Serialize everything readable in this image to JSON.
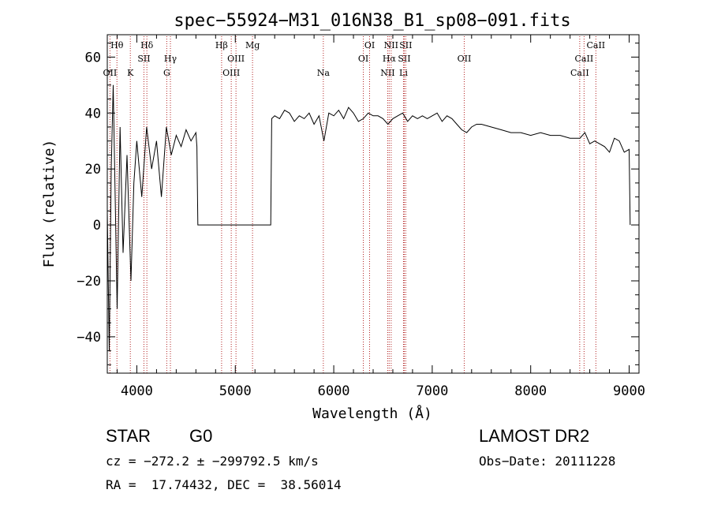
{
  "chart_data": {
    "type": "line",
    "title": "spec−55924−M31_016N38_B1_sp08−091.fits",
    "xlabel": "Wavelength (Å)",
    "ylabel": "Flux (relative)",
    "xlim": [
      3700,
      9100
    ],
    "ylim": [
      -53,
      68
    ],
    "x_ticks": [
      4000,
      5000,
      6000,
      7000,
      8000,
      9000
    ],
    "y_ticks": [
      -40,
      -20,
      0,
      20,
      40,
      60
    ],
    "grid": false,
    "series": [
      {
        "x": [
          3700,
          3720,
          3740,
          3760,
          3780,
          3800,
          3830,
          3860,
          3900,
          3940,
          3970,
          4000,
          4050,
          4100,
          4150,
          4200,
          4250,
          4300,
          4350,
          4400,
          4450,
          4500,
          4550,
          4600,
          4610,
          4620,
          5360,
          5370,
          5400,
          5450,
          5500,
          5550,
          5600,
          5650,
          5700,
          5750,
          5800,
          5850,
          5900,
          5950,
          6000,
          6050,
          6100,
          6150,
          6200,
          6250,
          6300,
          6350,
          6400,
          6450,
          6500,
          6550,
          6600,
          6650,
          6700,
          6750,
          6800,
          6850,
          6900,
          6950,
          7000,
          7050,
          7100,
          7150,
          7200,
          7250,
          7300,
          7350,
          7400,
          7450,
          7500,
          7600,
          7700,
          7800,
          7900,
          8000,
          8100,
          8200,
          8300,
          8400,
          8500,
          8550,
          8600,
          8650,
          8700,
          8750,
          8800,
          8850,
          8900,
          8950,
          9000,
          9010
        ],
        "y": [
          5,
          -45,
          20,
          50,
          10,
          -30,
          35,
          -10,
          25,
          -20,
          15,
          30,
          10,
          35,
          20,
          30,
          10,
          35,
          25,
          32,
          28,
          34,
          30,
          33,
          28,
          0,
          0,
          38,
          39,
          38,
          41,
          40,
          37,
          39,
          38,
          40,
          36,
          39,
          30,
          40,
          39,
          41,
          38,
          42,
          40,
          37,
          38,
          40,
          39,
          39,
          38,
          36,
          38,
          39,
          40,
          37,
          39,
          38,
          39,
          38,
          39,
          40,
          37,
          39,
          38,
          36,
          34,
          33,
          35,
          36,
          36,
          35,
          34,
          33,
          33,
          32,
          33,
          32,
          32,
          31,
          31,
          33,
          29,
          30,
          29,
          28,
          26,
          31,
          30,
          26,
          27,
          0
        ]
      }
    ],
    "lines": [
      {
        "name": "OII",
        "x": 3727,
        "row": 3
      },
      {
        "name": "Hθ",
        "x": 3798,
        "row": 1
      },
      {
        "name": "K",
        "x": 3934,
        "row": 3
      },
      {
        "name": "Hδ",
        "x": 4102,
        "row": 1
      },
      {
        "name": "SII",
        "x": 4072,
        "row": 2
      },
      {
        "name": "Hγ",
        "x": 4341,
        "row": 2
      },
      {
        "name": "G",
        "x": 4304,
        "row": 3
      },
      {
        "name": "Hβ",
        "x": 4861,
        "row": 1
      },
      {
        "name": "OIII",
        "x": 4959,
        "row": 3
      },
      {
        "name": "OIII",
        "x": 5007,
        "row": 2
      },
      {
        "name": "Mg",
        "x": 5175,
        "row": 1
      },
      {
        "name": "Na",
        "x": 5894,
        "row": 3
      },
      {
        "name": "OI",
        "x": 6300,
        "row": 2
      },
      {
        "name": "OI",
        "x": 6364,
        "row": 1
      },
      {
        "name": "NII",
        "x": 6548,
        "row": 3
      },
      {
        "name": "Hα",
        "x": 6563,
        "row": 2
      },
      {
        "name": "NII",
        "x": 6583,
        "row": 1
      },
      {
        "name": "Li",
        "x": 6708,
        "row": 3
      },
      {
        "name": "SII",
        "x": 6716,
        "row": 2
      },
      {
        "name": "SII",
        "x": 6731,
        "row": 1
      },
      {
        "name": "OII",
        "x": 7325,
        "row": 2
      },
      {
        "name": "CaII",
        "x": 8498,
        "row": 3
      },
      {
        "name": "CaII",
        "x": 8542,
        "row": 2
      },
      {
        "name": "CaII",
        "x": 8662,
        "row": 1
      }
    ]
  },
  "info": {
    "class": "STAR",
    "subclass": "G0",
    "survey": "LAMOST DR2",
    "cz": "cz = −272.2 ± −299792.5 km/s",
    "obs_date": "Obs−Date: 20111228",
    "coords": "RA =  17.74432, DEC =  38.56014"
  },
  "colors": {
    "line": "#000000",
    "marker": "#b22222"
  }
}
